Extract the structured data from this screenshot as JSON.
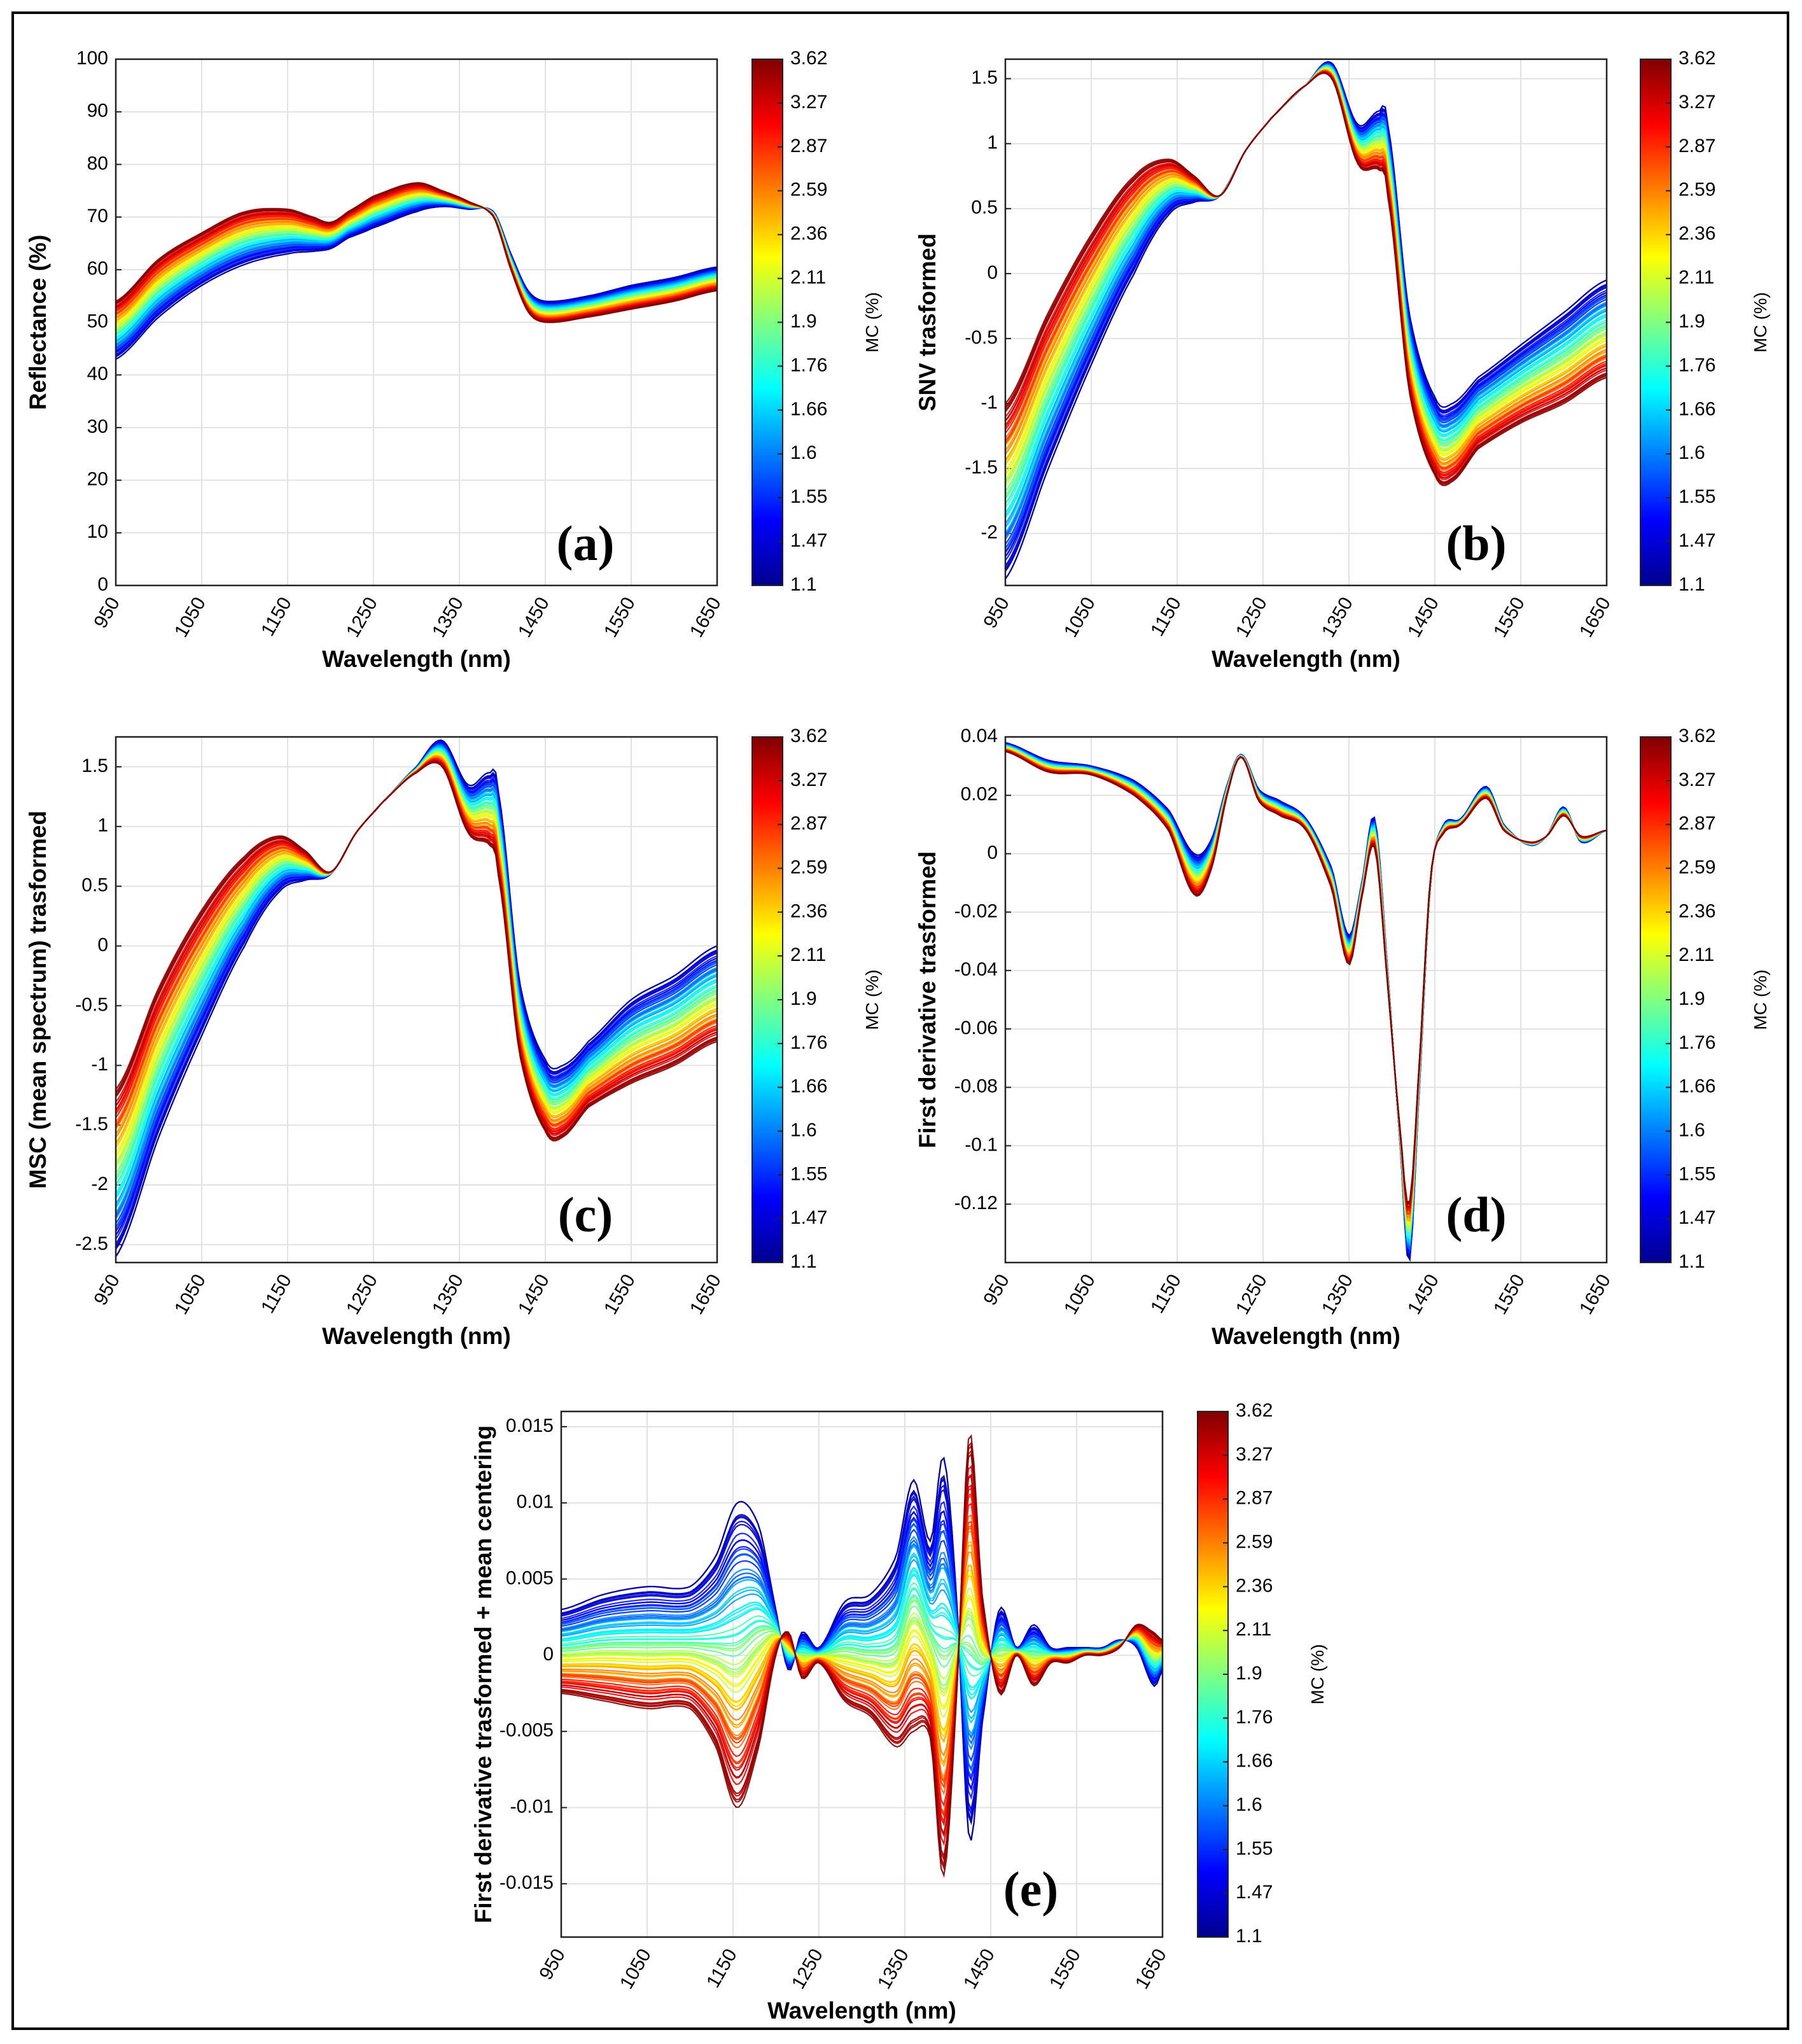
{
  "figure": {
    "border": true
  },
  "chart_data": [
    {
      "id": "a",
      "type": "line",
      "panel_label": "(a)",
      "xlabel": "Wavelength (nm)",
      "ylabel": "Reflectance (%)",
      "xlim": [
        950,
        1650
      ],
      "ylim": [
        0,
        100
      ],
      "xticks": [
        "950",
        "1050",
        "1150",
        "1250",
        "1350",
        "1450",
        "1550",
        "1650"
      ],
      "yticks": [
        "0",
        "10",
        "20",
        "30",
        "40",
        "50",
        "60",
        "70",
        "80",
        "90",
        "100"
      ],
      "grid": true,
      "x": [
        950,
        1000,
        1050,
        1100,
        1150,
        1180,
        1200,
        1220,
        1250,
        1300,
        1330,
        1360,
        1390,
        1410,
        1430,
        1450,
        1500,
        1550,
        1600,
        1650
      ],
      "series_envelope": {
        "low_mc": [
          43,
          51,
          57,
          61,
          63,
          63.5,
          64,
          66,
          68,
          71,
          72,
          71.5,
          71,
          63,
          56,
          54,
          55,
          57,
          58.5,
          60.5
        ],
        "high_mc": [
          54,
          62,
          67,
          71,
          71.5,
          70,
          69,
          71,
          74,
          76.5,
          75,
          73,
          70,
          60,
          52,
          50,
          51,
          52.5,
          54,
          56
        ]
      }
    },
    {
      "id": "b",
      "type": "line",
      "panel_label": "(b)",
      "xlabel": "Wavelength (nm)",
      "ylabel": "SNV trasformed",
      "xlim": [
        950,
        1650
      ],
      "ylim": [
        -2.4,
        1.65
      ],
      "xticks": [
        "950",
        "1050",
        "1150",
        "1250",
        "1350",
        "1450",
        "1550",
        "1650"
      ],
      "yticks": [
        "-2",
        "-1.5",
        "-1",
        "-0.5",
        "0",
        "0.5",
        "1",
        "1.5"
      ],
      "grid": true,
      "x": [
        950,
        1000,
        1050,
        1100,
        1140,
        1170,
        1200,
        1230,
        1260,
        1300,
        1330,
        1360,
        1385,
        1395,
        1420,
        1450,
        1470,
        1500,
        1550,
        1600,
        1650
      ],
      "series_envelope": {
        "low_mc": [
          -2.35,
          -1.5,
          -0.7,
          0.0,
          0.45,
          0.55,
          0.6,
          0.95,
          1.2,
          1.45,
          1.62,
          1.15,
          1.25,
          1.15,
          -0.3,
          -0.95,
          -1.0,
          -0.8,
          -0.55,
          -0.3,
          -0.05
        ],
        "high_mc": [
          -1.0,
          -0.3,
          0.3,
          0.75,
          0.88,
          0.75,
          0.6,
          0.95,
          1.2,
          1.45,
          1.5,
          0.85,
          0.8,
          0.6,
          -0.9,
          -1.55,
          -1.6,
          -1.35,
          -1.15,
          -1.0,
          -0.8
        ]
      }
    },
    {
      "id": "c",
      "type": "line",
      "panel_label": "(c)",
      "xlabel": "Wavelength (nm)",
      "ylabel": "MSC (mean spectrum) trasformed",
      "xlim": [
        950,
        1650
      ],
      "ylim": [
        -2.65,
        1.75
      ],
      "xticks": [
        "950",
        "1050",
        "1150",
        "1250",
        "1350",
        "1450",
        "1550",
        "1650"
      ],
      "yticks": [
        "-2.5",
        "-2",
        "-1.5",
        "-1",
        "-0.5",
        "0",
        "0.5",
        "1",
        "1.5"
      ],
      "grid": true,
      "x": [
        950,
        1000,
        1050,
        1100,
        1140,
        1170,
        1200,
        1230,
        1260,
        1300,
        1330,
        1360,
        1385,
        1395,
        1420,
        1450,
        1470,
        1500,
        1550,
        1600,
        1650
      ],
      "series_envelope": {
        "low_mc": [
          -2.6,
          -1.6,
          -0.75,
          0.0,
          0.45,
          0.55,
          0.6,
          0.95,
          1.2,
          1.5,
          1.72,
          1.35,
          1.45,
          1.3,
          -0.3,
          -0.95,
          -1.0,
          -0.8,
          -0.45,
          -0.25,
          0.0
        ],
        "high_mc": [
          -1.2,
          -0.35,
          0.3,
          0.75,
          0.92,
          0.8,
          0.62,
          0.95,
          1.2,
          1.45,
          1.5,
          0.95,
          0.85,
          0.6,
          -0.9,
          -1.55,
          -1.6,
          -1.35,
          -1.15,
          -1.0,
          -0.8
        ]
      }
    },
    {
      "id": "d",
      "type": "line",
      "panel_label": "(d)",
      "xlabel": "Wavelength (nm)",
      "ylabel": "First derivative trasformed",
      "xlim": [
        950,
        1650
      ],
      "ylim": [
        -0.14,
        0.04
      ],
      "xticks": [
        "950",
        "1050",
        "1150",
        "1250",
        "1350",
        "1450",
        "1550",
        "1650"
      ],
      "yticks": [
        "-0.12",
        "-0.1",
        "-0.08",
        "-0.06",
        "-0.04",
        "-0.02",
        "0",
        "0.02",
        "0.04"
      ],
      "grid": true,
      "x": [
        950,
        1000,
        1050,
        1100,
        1140,
        1170,
        1190,
        1210,
        1225,
        1245,
        1270,
        1300,
        1330,
        1350,
        1365,
        1380,
        1395,
        1410,
        1420,
        1430,
        1445,
        1460,
        1480,
        1510,
        1530,
        1560,
        1580,
        1600,
        1620,
        1650
      ],
      "series_envelope": {
        "low_mc": [
          0.038,
          0.032,
          0.03,
          0.025,
          0.015,
          0.0,
          0.005,
          0.025,
          0.034,
          0.022,
          0.018,
          0.012,
          -0.005,
          -0.028,
          -0.01,
          0.012,
          -0.04,
          -0.1,
          -0.14,
          -0.09,
          -0.01,
          0.01,
          0.012,
          0.023,
          0.01,
          0.003,
          0.006,
          0.016,
          0.004,
          0.008
        ],
        "high_mc": [
          0.035,
          0.028,
          0.027,
          0.02,
          0.008,
          -0.014,
          -0.005,
          0.022,
          0.033,
          0.018,
          0.013,
          0.008,
          -0.012,
          -0.038,
          -0.015,
          0.002,
          -0.045,
          -0.095,
          -0.12,
          -0.08,
          -0.008,
          0.007,
          0.01,
          0.019,
          0.008,
          0.004,
          0.006,
          0.013,
          0.006,
          0.008
        ]
      }
    },
    {
      "id": "e",
      "type": "line",
      "panel_label": "(e)",
      "xlabel": "Wavelength (nm)",
      "ylabel": "First derivative trasformed + mean centering",
      "xlim": [
        950,
        1650
      ],
      "ylim": [
        -0.0185,
        0.016
      ],
      "xticks": [
        "950",
        "1050",
        "1150",
        "1250",
        "1350",
        "1450",
        "1550",
        "1650"
      ],
      "yticks": [
        "-0.015",
        "-0.01",
        "-0.005",
        "0",
        "0.005",
        "0.01",
        "0.015"
      ],
      "grid": true,
      "x": [
        950,
        1000,
        1050,
        1100,
        1130,
        1155,
        1180,
        1200,
        1215,
        1230,
        1250,
        1280,
        1310,
        1340,
        1360,
        1380,
        1395,
        1410,
        1425,
        1440,
        1460,
        1480,
        1500,
        1520,
        1540,
        1560,
        1580,
        1600,
        1620,
        1640,
        1650
      ],
      "series_envelope": {
        "low_mc": [
          0.003,
          0.004,
          0.0045,
          0.0045,
          0.0065,
          0.01,
          0.0085,
          0.003,
          -0.001,
          0.0015,
          0.0005,
          0.0035,
          0.004,
          0.0065,
          0.0115,
          0.0075,
          0.013,
          0.004,
          -0.012,
          -0.0045,
          0.003,
          0.0005,
          0.002,
          0.0005,
          0.0005,
          0.0005,
          0.0005,
          0.001,
          0.0005,
          -0.002,
          -0.001
        ],
        "high_mc": [
          -0.0025,
          -0.003,
          -0.0035,
          -0.0035,
          -0.006,
          -0.01,
          -0.006,
          0.0,
          0.0015,
          -0.0015,
          -0.0005,
          -0.003,
          -0.004,
          -0.006,
          -0.005,
          -0.0055,
          -0.0145,
          -0.003,
          0.0145,
          0.004,
          -0.0025,
          0.0,
          -0.002,
          -0.0005,
          -0.0005,
          0.0,
          0.0,
          0.0005,
          0.002,
          0.0015,
          0.001
        ]
      }
    }
  ],
  "colorbar": {
    "label": "MC (%)",
    "ticks": [
      "1.1",
      "1.47",
      "1.55",
      "1.6",
      "1.66",
      "1.76",
      "1.9",
      "2.11",
      "2.36",
      "2.59",
      "2.87",
      "3.27",
      "3.62"
    ],
    "colormap": [
      "#00008f",
      "#0000ff",
      "#0080ff",
      "#00ffff",
      "#80ff80",
      "#ffff00",
      "#ff8000",
      "#ff0000",
      "#800000"
    ]
  }
}
